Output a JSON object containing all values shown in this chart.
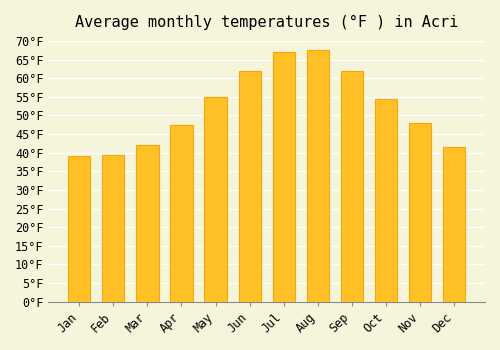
{
  "title": "Average monthly temperatures (°F ) in Acri",
  "months": [
    "Jan",
    "Feb",
    "Mar",
    "Apr",
    "May",
    "Jun",
    "Jul",
    "Aug",
    "Sep",
    "Oct",
    "Nov",
    "Dec"
  ],
  "values": [
    39,
    39.5,
    42,
    47.5,
    55,
    62,
    67,
    67.5,
    62,
    54.5,
    48,
    41.5
  ],
  "bar_color": "#FFC125",
  "bar_edge_color": "#FFA500",
  "ylim": [
    0,
    70
  ],
  "yticks": [
    0,
    5,
    10,
    15,
    20,
    25,
    30,
    35,
    40,
    45,
    50,
    55,
    60,
    65,
    70
  ],
  "ytick_labels": [
    "0°F",
    "5°F",
    "10°F",
    "15°F",
    "20°F",
    "25°F",
    "30°F",
    "35°F",
    "40°F",
    "45°F",
    "50°F",
    "55°F",
    "60°F",
    "65°F",
    "70°F"
  ],
  "background_color": "#F5F5DC",
  "grid_color": "#FFFFFF",
  "title_fontsize": 11,
  "tick_fontsize": 8.5
}
